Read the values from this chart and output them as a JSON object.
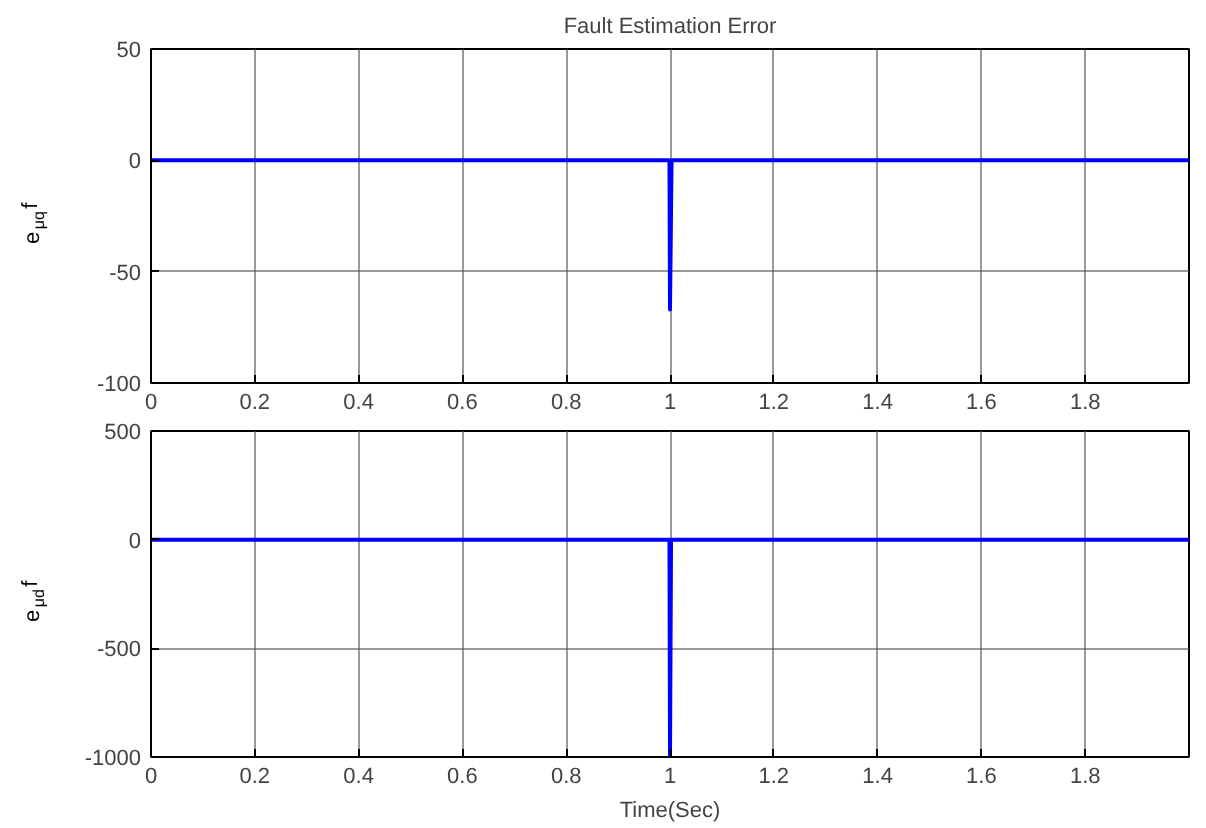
{
  "chart_data": [
    {
      "type": "line",
      "title": "Fault Estimation Error",
      "ylabel": "e$_{μq}$f",
      "x": [
        0,
        0.5,
        0.999,
        1.0,
        1.003,
        1.5,
        2
      ],
      "series": [
        {
          "color": "#0000ff",
          "values": [
            0,
            0,
            0,
            -67,
            0,
            0,
            0
          ]
        }
      ],
      "xlim": [
        0,
        2
      ],
      "ylim": [
        -100,
        50
      ],
      "xticks": [
        0,
        0.2,
        0.4,
        0.6,
        0.8,
        1,
        1.2,
        1.4,
        1.6,
        1.8
      ],
      "yticks": [
        -100,
        -50,
        0,
        50
      ],
      "grid": true,
      "marker": "none",
      "line_style": "solid"
    },
    {
      "type": "line",
      "xlabel": "Time(Sec)",
      "ylabel": "e$_{μd}$f",
      "x": [
        0,
        0.5,
        0.999,
        1.0,
        1.002,
        1.5,
        2
      ],
      "series": [
        {
          "color": "#0000ff",
          "values": [
            0,
            0,
            0,
            -1000,
            0,
            0,
            0
          ]
        }
      ],
      "xlim": [
        0,
        2
      ],
      "ylim": [
        -1000,
        500
      ],
      "xticks": [
        0,
        0.2,
        0.4,
        0.6,
        0.8,
        1,
        1.2,
        1.4,
        1.6,
        1.8
      ],
      "yticks": [
        -1000,
        -500,
        0,
        500
      ],
      "grid": true,
      "marker": "none",
      "line_style": "solid"
    }
  ]
}
